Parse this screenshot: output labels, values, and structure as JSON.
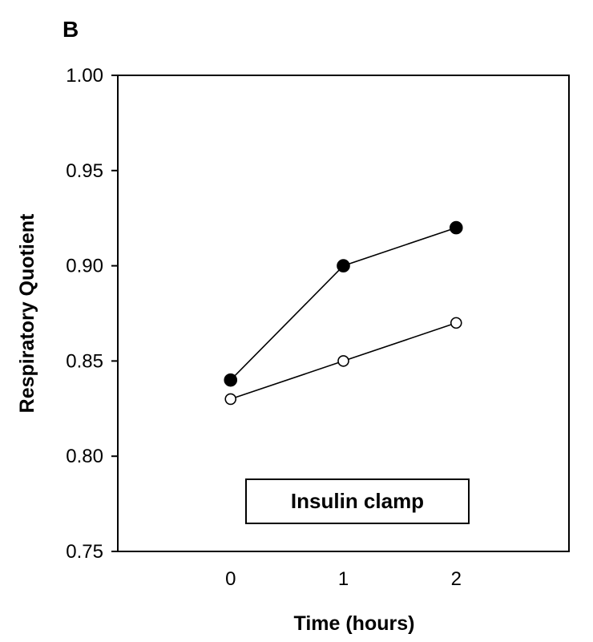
{
  "panel_label": "B",
  "chart_data": {
    "type": "line",
    "title": "",
    "xlabel": "Time (hours)",
    "ylabel": "Respiratory Quotient",
    "x": [
      0,
      1,
      2
    ],
    "xticks": [
      "0",
      "1",
      "2"
    ],
    "xlim": [
      -1,
      3
    ],
    "ylim": [
      0.75,
      1.0
    ],
    "yticks": [
      "0.75",
      "0.80",
      "0.85",
      "0.90",
      "0.95",
      "1.00"
    ],
    "series": [
      {
        "marker": "filled-circle",
        "color": "#000000",
        "values": [
          0.84,
          0.9,
          0.92
        ]
      },
      {
        "marker": "open-circle",
        "color": "#000000",
        "values": [
          0.83,
          0.85,
          0.87
        ]
      }
    ],
    "annotation": "Insulin clamp",
    "grid": false,
    "legend": "none"
  }
}
